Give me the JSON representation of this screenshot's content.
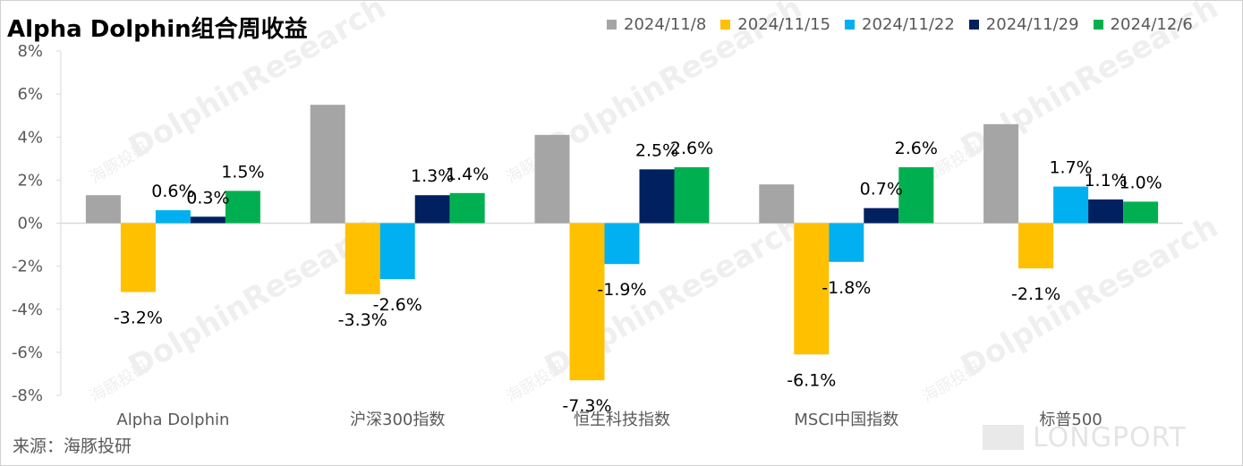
{
  "title": "Alpha Dolphin组合周收益",
  "source": "来源：海豚投研",
  "watermark": {
    "text": "DolphinResearch",
    "sub": "海豚投研",
    "logo": "LONGPORT"
  },
  "chart_data": {
    "type": "bar",
    "title": "Alpha Dolphin组合周收益",
    "categories": [
      "Alpha Dolphin",
      "沪深300指数",
      "恒生科技指数",
      "MSCI中国指数",
      "标普500"
    ],
    "series": [
      {
        "name": "2024/11/8",
        "color": "#a5a5a5",
        "values": [
          1.3,
          5.5,
          4.1,
          1.8,
          4.6
        ],
        "labels": [
          "",
          "",
          "",
          "",
          ""
        ]
      },
      {
        "name": "2024/11/15",
        "color": "#ffc000",
        "values": [
          -3.2,
          -3.3,
          -7.3,
          -6.1,
          -2.1
        ],
        "labels": [
          "-3.2%",
          "-3.3%",
          "-7.3%",
          "-6.1%",
          "-2.1%"
        ]
      },
      {
        "name": "2024/11/22",
        "color": "#00b0f0",
        "values": [
          0.6,
          -2.6,
          -1.9,
          -1.8,
          1.7
        ],
        "labels": [
          "0.6%",
          "-2.6%",
          "-1.9%",
          "-1.8%",
          "1.7%"
        ]
      },
      {
        "name": "2024/11/29",
        "color": "#002060",
        "values": [
          0.3,
          1.3,
          2.5,
          0.7,
          1.1
        ],
        "labels": [
          "0.3%",
          "1.3%",
          "2.5%",
          "0.7%",
          "1.1%"
        ]
      },
      {
        "name": "2024/12/6",
        "color": "#00b050",
        "values": [
          1.5,
          1.4,
          2.6,
          2.6,
          1.0
        ],
        "labels": [
          "1.5%",
          "1.4%",
          "2.6%",
          "2.6%",
          "1.0%"
        ]
      }
    ],
    "y_ticks": [
      "8%",
      "6%",
      "4%",
      "2%",
      "0%",
      "-2%",
      "-4%",
      "-6%",
      "-8%"
    ],
    "y_tick_values": [
      8,
      6,
      4,
      2,
      0,
      -2,
      -4,
      -6,
      -8
    ],
    "ylim": [
      -8,
      8
    ],
    "legend_position": "top-right",
    "grid": false
  }
}
